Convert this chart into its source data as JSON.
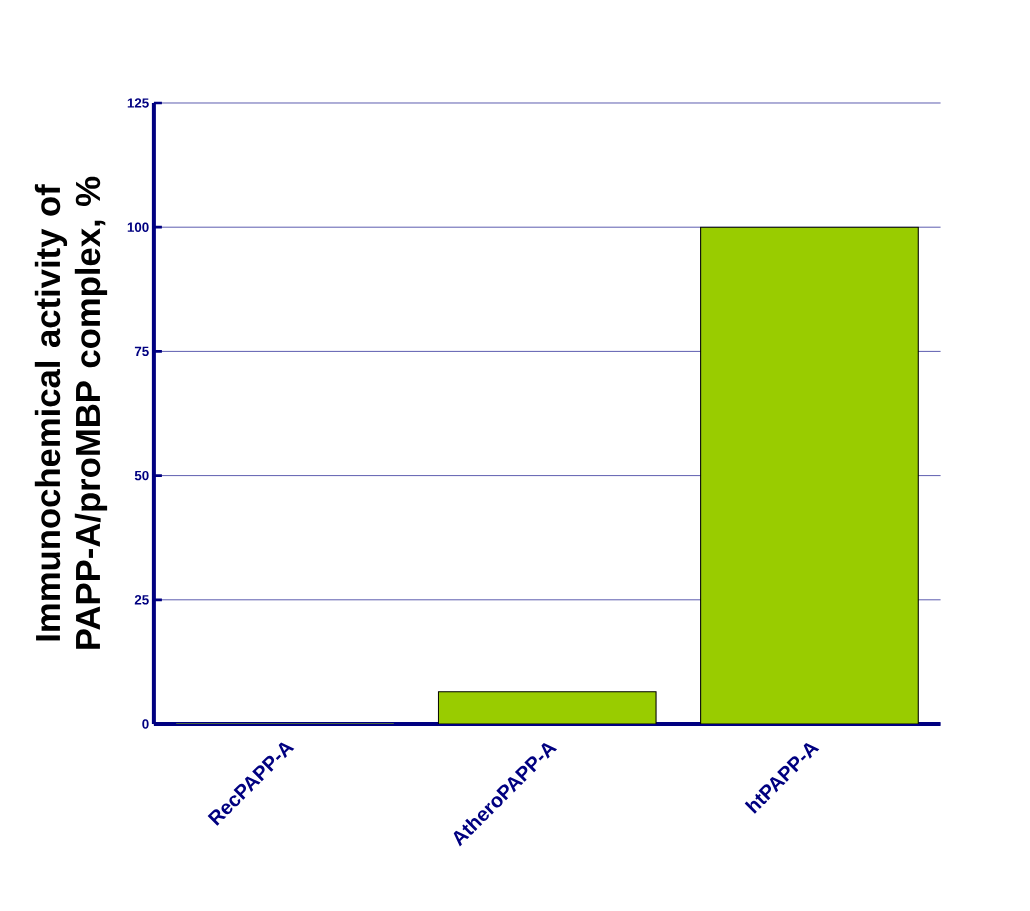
{
  "chart_data": {
    "type": "bar",
    "ylabel": "Immunochemical activity of PAPP-A/proMBP complex, %",
    "categories": [
      "RecPAPP-A",
      "AtheroPAPP-A",
      "htPAPP-A"
    ],
    "values": [
      0,
      6.5,
      100
    ],
    "color": "#99cc00",
    "ylim": [
      0,
      125
    ],
    "yticks": [
      0,
      25,
      50,
      75,
      100,
      125
    ],
    "grid": "y"
  }
}
